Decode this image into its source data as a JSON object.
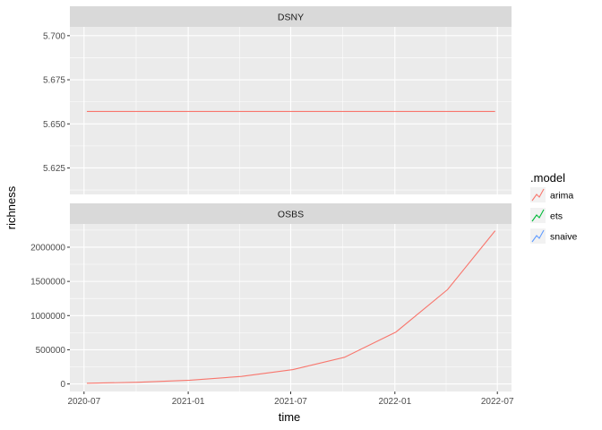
{
  "chart_data": {
    "type": "line",
    "xlabel": "time",
    "ylabel": "richness",
    "x_ticks": [
      "2020-07",
      "2021-01",
      "2021-07",
      "2022-01",
      "2022-07"
    ],
    "x_range": [
      "2020-06-06",
      "2022-07-26"
    ],
    "panels": [
      {
        "strip": "DSNY",
        "ylim": [
          5.61,
          5.705
        ],
        "y_ticks": [
          5.625,
          5.65,
          5.675,
          5.7
        ],
        "y_tick_labels": [
          "5.625",
          "5.650",
          "5.675",
          "5.700"
        ],
        "series": [
          {
            "name": "arima",
            "x": [
              "2020-07-06",
              "2022-06-27"
            ],
            "y": [
              5.657,
              5.657
            ]
          }
        ]
      },
      {
        "strip": "OSBS",
        "ylim": [
          -110000,
          2340000
        ],
        "y_ticks": [
          0,
          500000,
          1000000,
          1500000,
          2000000
        ],
        "y_tick_labels": [
          "0",
          "500000",
          "1000000",
          "1500000",
          "2000000"
        ],
        "series": [
          {
            "name": "arima",
            "x": [
              "2020-07-06",
              "2020-10-05",
              "2021-01-04",
              "2021-04-05",
              "2021-07-05",
              "2021-10-04",
              "2022-01-03",
              "2022-04-04",
              "2022-06-27"
            ],
            "y": [
              10000,
              25000,
              55000,
              110000,
              210000,
              390000,
              760000,
              1380000,
              2240000
            ]
          }
        ]
      }
    ],
    "legend": {
      "title": ".model",
      "position": "right",
      "entries": [
        {
          "label": "arima",
          "color": "#F8766D"
        },
        {
          "label": "ets",
          "color": "#00BA38"
        },
        {
          "label": "snaive",
          "color": "#619CFF"
        }
      ]
    },
    "grid": true,
    "colors": {
      "panel_bg": "#EBEBEB",
      "strip_bg": "#D9D9D9",
      "grid_major": "#FFFFFF"
    }
  }
}
